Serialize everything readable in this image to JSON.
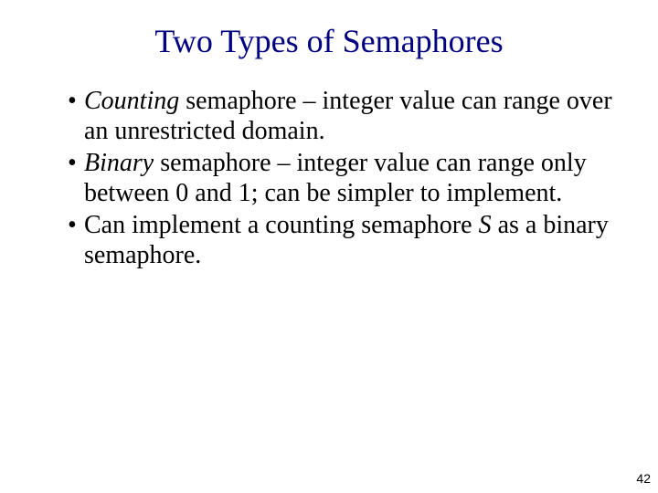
{
  "colors": {
    "title": "#000080",
    "body": "#000000",
    "page_number": "#000000",
    "background": "#ffffff"
  },
  "title": "Two Types of Semaphores",
  "bullets": [
    {
      "italic_lead": "Counting",
      "rest": " semaphore – integer value can range over an unrestricted domain."
    },
    {
      "italic_lead": "Binary",
      "rest": " semaphore – integer value can range only between 0 and 1; can be simpler to implement."
    },
    {
      "pre": "Can implement a counting semaphore ",
      "italic_var": "S",
      "post": " as a binary semaphore."
    }
  ],
  "page_number": "42",
  "fonts": {
    "title_size_pt": 36,
    "body_size_pt": 28,
    "page_number_size_pt": 14
  }
}
